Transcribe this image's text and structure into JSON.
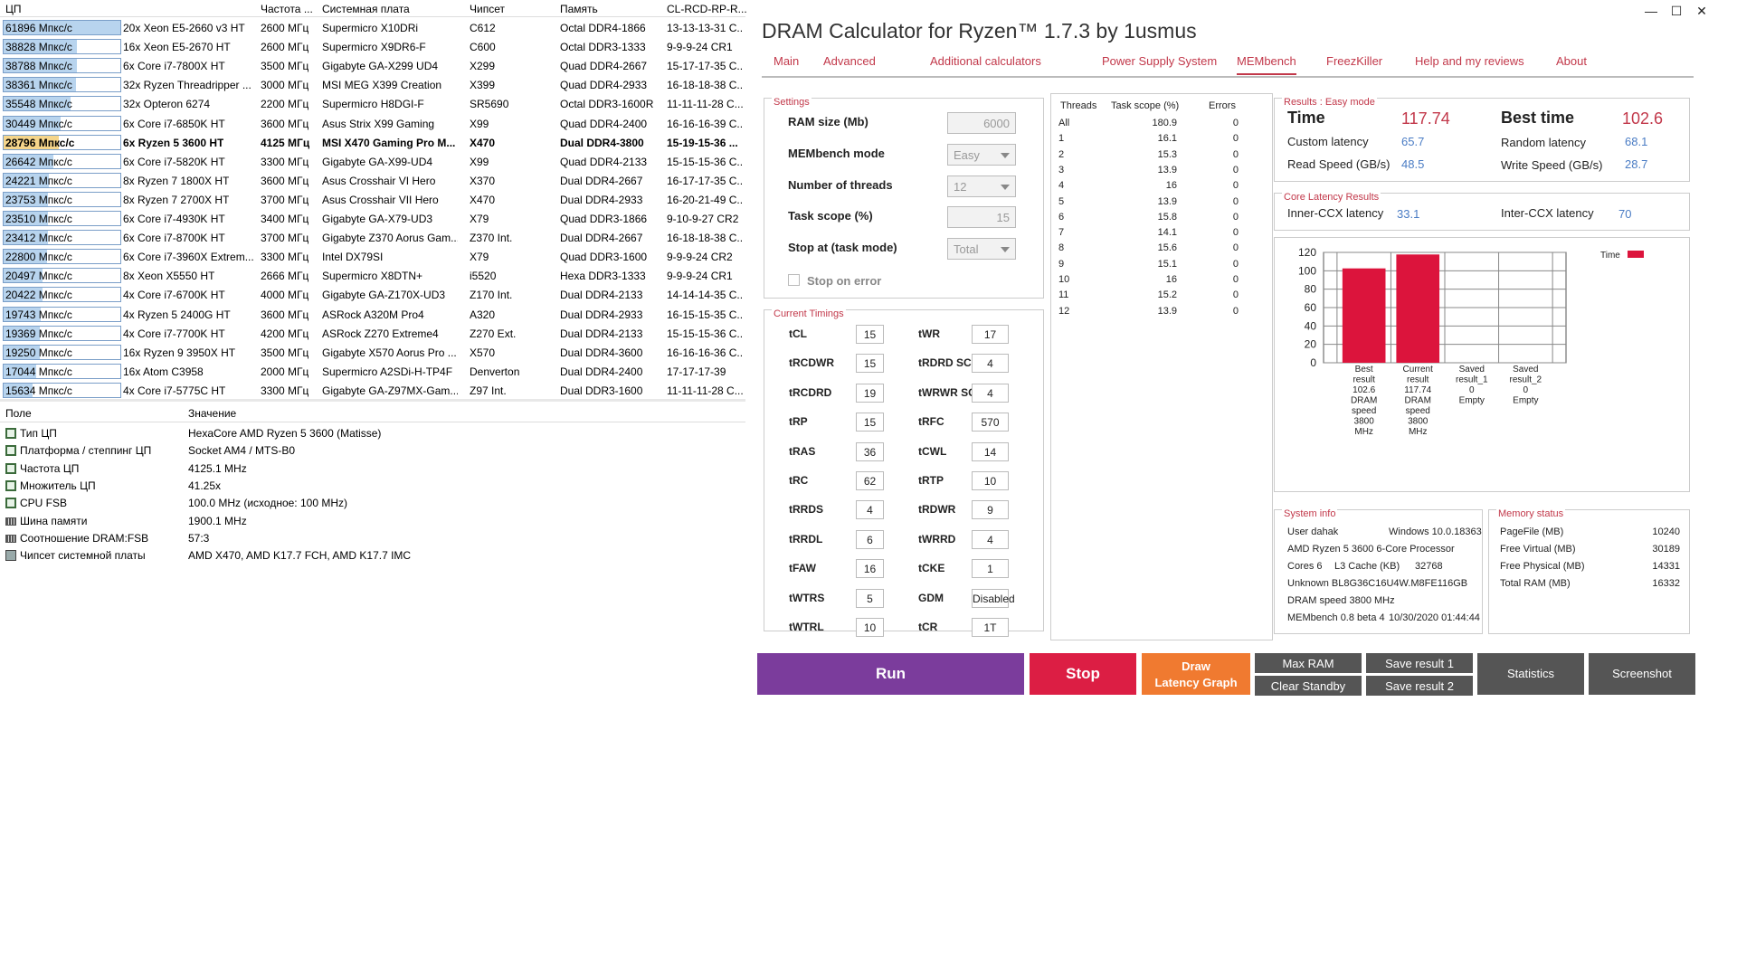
{
  "aida": {
    "headers": [
      "ЦП",
      "Частота ...",
      "Системная плата",
      "Чипсет",
      "Память",
      "CL-RCD-RP-R..."
    ],
    "rows": [
      {
        "score": "61896 Мпкс/с",
        "fill": 1.0,
        "cpu": "20x Xeon E5-2660 v3 HT",
        "freq": "2600 МГц",
        "board": "Supermicro X10DRi",
        "chipset": "C612",
        "mem": "Octal DDR4-1866",
        "timing": "13-13-13-31 C..."
      },
      {
        "score": "38828 Мпкс/с",
        "fill": 0.63,
        "cpu": "16x Xeon E5-2670 HT",
        "freq": "2600 МГц",
        "board": "Supermicro X9DR6-F",
        "chipset": "C600",
        "mem": "Octal DDR3-1333",
        "timing": "9-9-9-24 CR1"
      },
      {
        "score": "38788 Мпкс/с",
        "fill": 0.63,
        "cpu": "6x Core i7-7800X HT",
        "freq": "3500 МГц",
        "board": "Gigabyte GA-X299 UD4",
        "chipset": "X299",
        "mem": "Quad DDR4-2667",
        "timing": "15-17-17-35 C..."
      },
      {
        "score": "38361 Мпкс/с",
        "fill": 0.62,
        "cpu": "32x Ryzen Threadripper ...",
        "freq": "3000 МГц",
        "board": "MSI MEG X399 Creation",
        "chipset": "X399",
        "mem": "Quad DDR4-2933",
        "timing": "16-18-18-38 C..."
      },
      {
        "score": "35548 Мпкс/с",
        "fill": 0.57,
        "cpu": "32x Opteron 6274",
        "freq": "2200 МГц",
        "board": "Supermicro H8DGI-F",
        "chipset": "SR5690",
        "mem": "Octal DDR3-1600R",
        "timing": "11-11-11-28 C..."
      },
      {
        "score": "30449 Мпкс/с",
        "fill": 0.49,
        "cpu": "6x Core i7-6850K HT",
        "freq": "3600 МГц",
        "board": "Asus Strix X99 Gaming",
        "chipset": "X99",
        "mem": "Quad DDR4-2400",
        "timing": "16-16-16-39 C..."
      },
      {
        "score": "28796 Мпкс/с",
        "fill": 0.47,
        "own": true,
        "cpu": "6x Ryzen 5 3600 HT",
        "freq": "4125 МГц",
        "board": "MSI X470 Gaming Pro M...",
        "chipset": "X470",
        "mem": "Dual DDR4-3800",
        "timing": "15-19-15-36 ..."
      },
      {
        "score": "26642 Мпкс/с",
        "fill": 0.43,
        "cpu": "6x Core i7-5820K HT",
        "freq": "3300 МГц",
        "board": "Gigabyte GA-X99-UD4",
        "chipset": "X99",
        "mem": "Quad DDR4-2133",
        "timing": "15-15-15-36 C..."
      },
      {
        "score": "24221 Мпкс/с",
        "fill": 0.39,
        "cpu": "8x Ryzen 7 1800X HT",
        "freq": "3600 МГц",
        "board": "Asus Crosshair VI Hero",
        "chipset": "X370",
        "mem": "Dual DDR4-2667",
        "timing": "16-17-17-35 C..."
      },
      {
        "score": "23753 Мпкс/с",
        "fill": 0.38,
        "cpu": "8x Ryzen 7 2700X HT",
        "freq": "3700 МГц",
        "board": "Asus Crosshair VII Hero",
        "chipset": "X470",
        "mem": "Dual DDR4-2933",
        "timing": "16-20-21-49 C..."
      },
      {
        "score": "23510 Мпкс/с",
        "fill": 0.38,
        "cpu": "6x Core i7-4930K HT",
        "freq": "3400 МГц",
        "board": "Gigabyte GA-X79-UD3",
        "chipset": "X79",
        "mem": "Quad DDR3-1866",
        "timing": "9-10-9-27 CR2"
      },
      {
        "score": "23412 Мпкс/с",
        "fill": 0.38,
        "cpu": "6x Core i7-8700K HT",
        "freq": "3700 МГц",
        "board": "Gigabyte Z370 Aorus Gam...",
        "chipset": "Z370 Int.",
        "mem": "Dual DDR4-2667",
        "timing": "16-18-18-38 C..."
      },
      {
        "score": "22800 Мпкс/с",
        "fill": 0.37,
        "cpu": "6x Core i7-3960X Extrem...",
        "freq": "3300 МГц",
        "board": "Intel DX79SI",
        "chipset": "X79",
        "mem": "Quad DDR3-1600",
        "timing": "9-9-9-24 CR2"
      },
      {
        "score": "20497 Мпкс/с",
        "fill": 0.33,
        "cpu": "8x Xeon X5550 HT",
        "freq": "2666 МГц",
        "board": "Supermicro X8DTN+",
        "chipset": "i5520",
        "mem": "Hexa DDR3-1333",
        "timing": "9-9-9-24 CR1"
      },
      {
        "score": "20422 Мпкс/с",
        "fill": 0.33,
        "cpu": "4x Core i7-6700K HT",
        "freq": "4000 МГц",
        "board": "Gigabyte GA-Z170X-UD3",
        "chipset": "Z170 Int.",
        "mem": "Dual DDR4-2133",
        "timing": "14-14-14-35 C..."
      },
      {
        "score": "19743 Мпкс/с",
        "fill": 0.32,
        "cpu": "4x Ryzen 5 2400G HT",
        "freq": "3600 МГц",
        "board": "ASRock A320M Pro4",
        "chipset": "A320",
        "mem": "Dual DDR4-2933",
        "timing": "16-15-15-35 C..."
      },
      {
        "score": "19369 Мпкс/с",
        "fill": 0.31,
        "cpu": "4x Core i7-7700K HT",
        "freq": "4200 МГц",
        "board": "ASRock Z270 Extreme4",
        "chipset": "Z270 Ext.",
        "mem": "Dual DDR4-2133",
        "timing": "15-15-15-36 C..."
      },
      {
        "score": "19250 Мпкс/с",
        "fill": 0.31,
        "cpu": "16x Ryzen 9 3950X HT",
        "freq": "3500 МГц",
        "board": "Gigabyte X570 Aorus Pro ...",
        "chipset": "X570",
        "mem": "Dual DDR4-3600",
        "timing": "16-16-16-36 C..."
      },
      {
        "score": "17044 Мпкс/с",
        "fill": 0.28,
        "cpu": "16x Atom C3958",
        "freq": "2000 МГц",
        "board": "Supermicro A2SDi-H-TP4F",
        "chipset": "Denverton",
        "mem": "Dual DDR4-2400",
        "timing": "17-17-17-39"
      },
      {
        "score": "15634 Мпкс/с",
        "fill": 0.25,
        "cpu": "4x Core i7-5775C HT",
        "freq": "3300 МГц",
        "board": "Gigabyte GA-Z97MX-Gam...",
        "chipset": "Z97 Int.",
        "mem": "Dual DDR3-1600",
        "timing": "11-11-11-28 C..."
      }
    ],
    "props_headers": [
      "Поле",
      "Значение"
    ],
    "props": [
      {
        "icon": "cpu",
        "field": "Тип ЦП",
        "value": "HexaCore AMD Ryzen 5 3600  (Matisse)"
      },
      {
        "icon": "cpu",
        "field": "Платформа / степпинг ЦП",
        "value": "Socket AM4 / MTS-B0"
      },
      {
        "icon": "cpu",
        "field": "Частота ЦП",
        "value": "4125.1 MHz"
      },
      {
        "icon": "cpu",
        "field": "Множитель ЦП",
        "value": "41.25x"
      },
      {
        "icon": "cpu",
        "field": "CPU FSB",
        "value": "100.0 MHz  (исходное: 100 MHz)"
      },
      {
        "icon": "ram",
        "field": "Шина памяти",
        "value": "1900.1 MHz"
      },
      {
        "icon": "ram",
        "field": "Соотношение DRAM:FSB",
        "value": "57:3"
      },
      {
        "icon": "chip",
        "field": "Чипсет системной платы",
        "value": "AMD X470, AMD K17.7 FCH, AMD K17.7 IMC"
      }
    ]
  },
  "dram": {
    "title": "DRAM Calculator for Ryzen™ 1.7.3 by 1usmus",
    "window_buttons": [
      "—",
      "☐",
      "✕"
    ],
    "tabs": [
      "Main",
      "Advanced",
      "Additional calculators",
      "Power Supply System",
      "MEMbench",
      "FreezKiller",
      "Help and my reviews",
      "About"
    ],
    "settings": {
      "title": "Settings",
      "ram_size_label": "RAM size (Mb)",
      "ram_size": "6000",
      "mode_label": "MEMbench mode",
      "mode": "Easy",
      "threads_label": "Number of threads",
      "threads": "12",
      "scope_label": "Task scope (%)",
      "scope": "15",
      "stop_label": "Stop at (task mode)",
      "stop": "Total",
      "stop_on_error": "Stop on error"
    },
    "timings_title": "Current Timings",
    "timings_left": [
      {
        "name": "tCL",
        "value": "15"
      },
      {
        "name": "tRCDWR",
        "value": "15"
      },
      {
        "name": "tRCDRD",
        "value": "19"
      },
      {
        "name": "tRP",
        "value": "15"
      },
      {
        "name": "tRAS",
        "value": "36"
      },
      {
        "name": "tRC",
        "value": "62"
      },
      {
        "name": "tRRDS",
        "value": "4"
      },
      {
        "name": "tRRDL",
        "value": "6"
      },
      {
        "name": "tFAW",
        "value": "16"
      },
      {
        "name": "tWTRS",
        "value": "5"
      },
      {
        "name": "tWTRL",
        "value": "10"
      }
    ],
    "timings_right": [
      {
        "name": "tWR",
        "value": "17"
      },
      {
        "name": "tRDRD SCL",
        "value": "4"
      },
      {
        "name": "tWRWR SCL",
        "value": "4"
      },
      {
        "name": "tRFC",
        "value": "570"
      },
      {
        "name": "tCWL",
        "value": "14"
      },
      {
        "name": "tRTP",
        "value": "10"
      },
      {
        "name": "tRDWR",
        "value": "9"
      },
      {
        "name": "tWRRD",
        "value": "4"
      },
      {
        "name": "tCKE",
        "value": "1"
      },
      {
        "name": "GDM",
        "value": "Disabled"
      },
      {
        "name": "tCR",
        "value": "1T"
      }
    ],
    "threads_table": {
      "headers": [
        "Threads",
        "Task scope (%)",
        "Errors"
      ],
      "rows": [
        [
          "All",
          "180.9",
          "0"
        ],
        [
          "1",
          "16.1",
          "0"
        ],
        [
          "2",
          "15.3",
          "0"
        ],
        [
          "3",
          "13.9",
          "0"
        ],
        [
          "4",
          "16",
          "0"
        ],
        [
          "5",
          "13.9",
          "0"
        ],
        [
          "6",
          "15.8",
          "0"
        ],
        [
          "7",
          "14.1",
          "0"
        ],
        [
          "8",
          "15.6",
          "0"
        ],
        [
          "9",
          "15.1",
          "0"
        ],
        [
          "10",
          "16",
          "0"
        ],
        [
          "11",
          "15.2",
          "0"
        ],
        [
          "12",
          "13.9",
          "0"
        ]
      ]
    },
    "results": {
      "title": "Results : Easy mode",
      "time_label": "Time",
      "time": "117.74",
      "best_label": "Best time",
      "best": "102.6",
      "custom_label": "Custom latency",
      "custom": "65.7",
      "random_label": "Random latency",
      "random": "68.1",
      "read_label": "Read Speed (GB/s)",
      "read": "48.5",
      "write_label": "Write Speed (GB/s)",
      "write": "28.7"
    },
    "core_latency": {
      "title": "Core Latency Results",
      "inner_label": "Inner-CCX latency",
      "inner": "33.1",
      "inter_label": "Inter-CCX latency",
      "inter": "70"
    },
    "system_info": {
      "title": "System info",
      "user": "User dahak",
      "os": "Windows 10.0.18363",
      "cpu": "AMD Ryzen 5 3600 6-Core Processor",
      "cores": "Cores 6",
      "l3_label": "L3 Cache (KB)",
      "l3": "32768",
      "module": "Unknown BL8G36C16U4W.M8FE116GB",
      "dram_speed": "DRAM speed 3800 MHz",
      "membench": "MEMbench 0.8 beta 4",
      "date": "10/30/2020 01:44:44"
    },
    "memory_status": {
      "title": "Memory status",
      "rows": [
        {
          "label": "PageFile (MB)",
          "value": "10240"
        },
        {
          "label": "Free Virtual (MB)",
          "value": "30189"
        },
        {
          "label": "Free Physical (MB)",
          "value": "14331"
        },
        {
          "label": "Total RAM (MB)",
          "value": "16332"
        }
      ]
    },
    "buttons": {
      "run": "Run",
      "stop": "Stop",
      "draw_line1": "Draw",
      "draw_line2": "Latency Graph",
      "max_ram": "Max RAM",
      "clear_standby": "Clear Standby",
      "save1": "Save result 1",
      "save2": "Save result 2",
      "statistics": "Statistics",
      "screenshot": "Screenshot"
    }
  },
  "chart_data": {
    "type": "bar",
    "categories": [
      "Best result",
      "Current result",
      "Saved result_1",
      "Saved result_2"
    ],
    "category_labels": [
      [
        "Best",
        "result",
        "102.6",
        "DRAM",
        "speed",
        "3800",
        "MHz"
      ],
      [
        "Current",
        "result",
        "117.74",
        "DRAM",
        "speed",
        "3800",
        "MHz"
      ],
      [
        "Saved",
        "result_1",
        "0",
        "Empty"
      ],
      [
        "Saved",
        "result_2",
        "0",
        "Empty"
      ]
    ],
    "series": [
      {
        "name": "Time",
        "values": [
          102.6,
          117.74,
          0,
          0
        ],
        "color": "#dc143c"
      }
    ],
    "ylim": [
      0,
      120
    ],
    "yticks": [
      "0",
      "20",
      "40",
      "60",
      "80",
      "100",
      "120"
    ],
    "grid": true,
    "legend": "top-right"
  }
}
